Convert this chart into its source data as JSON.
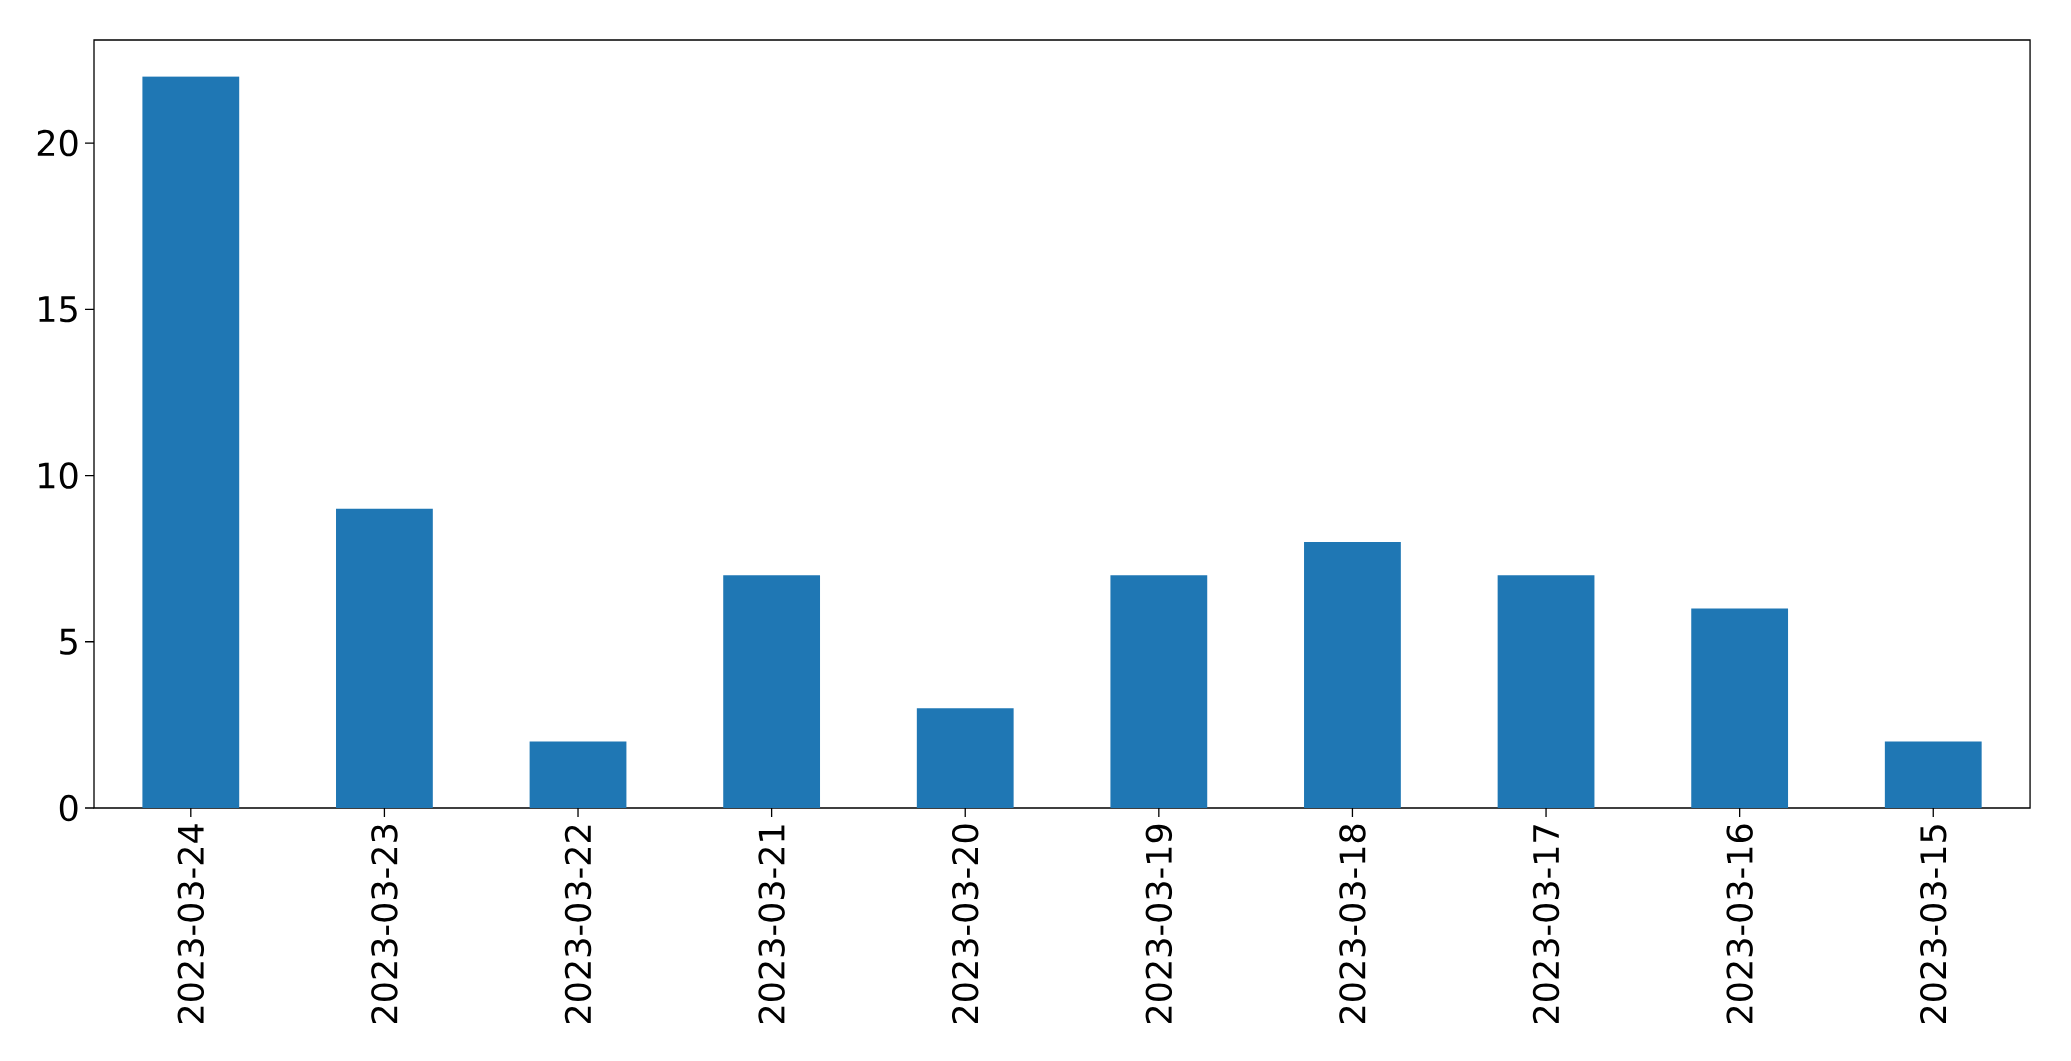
{
  "chart_data": {
    "type": "bar",
    "categories": [
      "2023-03-24",
      "2023-03-23",
      "2023-03-22",
      "2023-03-21",
      "2023-03-20",
      "2023-03-19",
      "2023-03-18",
      "2023-03-17",
      "2023-03-16",
      "2023-03-15"
    ],
    "values": [
      22,
      9,
      2,
      7,
      3,
      7,
      8,
      7,
      6,
      2
    ],
    "color": "#1f77b4",
    "ylim": [
      0,
      23.1
    ],
    "yticks": [
      0,
      5,
      10,
      15,
      20
    ]
  }
}
